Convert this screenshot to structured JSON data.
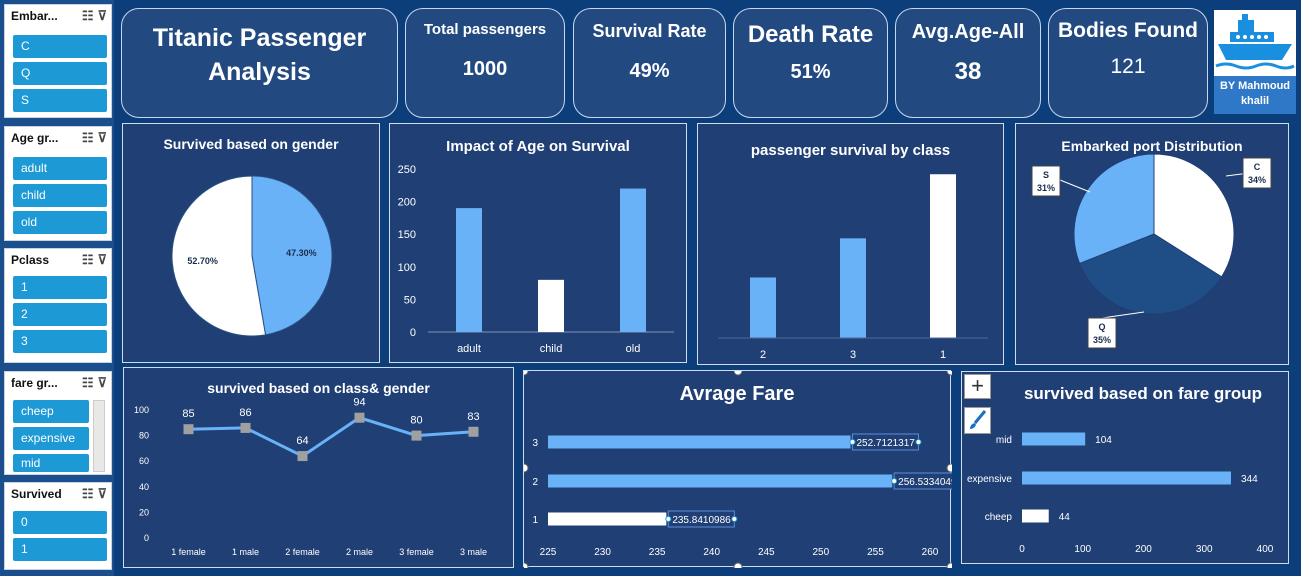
{
  "title": "Titanic Passenger Analysis",
  "kpis": [
    {
      "label": "Total passengers",
      "value": "1000"
    },
    {
      "label": "Survival Rate",
      "value": "49%"
    },
    {
      "label": "Death Rate",
      "value": "51%"
    },
    {
      "label": "Avg.Age-All",
      "value": "38"
    },
    {
      "label": "Bodies Found",
      "value": "121"
    }
  ],
  "author": "BY Mahmoud khalil",
  "slicers": [
    {
      "title": "Embar...",
      "items": [
        "C",
        "Q",
        "S"
      ]
    },
    {
      "title": "Age gr...",
      "items": [
        "adult",
        "child",
        "old"
      ]
    },
    {
      "title": "Pclass",
      "items": [
        "1",
        "2",
        "3"
      ]
    },
    {
      "title": "fare gr...",
      "items": [
        "cheep",
        "expensive",
        "mid"
      ]
    },
    {
      "title": "Survived",
      "items": [
        "0",
        "1"
      ]
    }
  ],
  "colors": {
    "bg": "#0b3e7a",
    "panel": "#203f75",
    "blue": "#6ab2f8",
    "white": "#ffffff",
    "navy": "#1f4e86",
    "marker": "#a0a0a0"
  },
  "chart_data": [
    {
      "type": "pie",
      "title": "Survived based on gender",
      "labels": [
        "47.30%",
        "52.70%"
      ],
      "values": [
        47.3,
        52.7
      ]
    },
    {
      "type": "bar",
      "title": "Impact of Age on Survival",
      "categories": [
        "adult",
        "child",
        "old"
      ],
      "values": [
        190,
        80,
        220
      ],
      "ylim": [
        0,
        250
      ],
      "yticks": [
        "0",
        "50",
        "100",
        "150",
        "200",
        "250"
      ]
    },
    {
      "type": "bar",
      "title": "passenger survival by class",
      "categories": [
        "2",
        "3",
        "1"
      ],
      "values": [
        85,
        140,
        230
      ],
      "ylim": [
        0,
        250
      ]
    },
    {
      "type": "pie",
      "title": "Embarked port Distribution",
      "labels": [
        "C",
        "Q",
        "S"
      ],
      "pct_labels": [
        "34%",
        "35%",
        "31%"
      ],
      "values": [
        34,
        35,
        31
      ]
    },
    {
      "type": "line",
      "title": "survived based on class& gender",
      "categories": [
        "1 female",
        "1 male",
        "2 female",
        "2 male",
        "3 female",
        "3 male"
      ],
      "values": [
        85,
        86,
        64,
        94,
        80,
        83
      ],
      "ylim": [
        0,
        100
      ],
      "yticks": [
        "0",
        "20",
        "40",
        "60",
        "80",
        "100"
      ]
    },
    {
      "type": "bar",
      "orientation": "horizontal",
      "title": "Avrage Fare",
      "categories": [
        "3",
        "2",
        "1"
      ],
      "values": [
        252.7121317,
        256.5334049,
        235.8410986
      ],
      "value_labels": [
        "252.7121317",
        "256.5334049",
        "235.8410986"
      ],
      "xlim": [
        225,
        260
      ],
      "xticks": [
        "225",
        "230",
        "235",
        "240",
        "245",
        "250",
        "255",
        "260"
      ]
    },
    {
      "type": "bar",
      "orientation": "horizontal",
      "title": "survived based on fare group",
      "categories": [
        "mid",
        "expensive",
        "cheep"
      ],
      "values": [
        104,
        344,
        44
      ],
      "value_labels": [
        "104",
        "344",
        "44"
      ],
      "xlim": [
        0,
        400
      ],
      "xticks": [
        "0",
        "100",
        "200",
        "300",
        "400"
      ]
    }
  ]
}
